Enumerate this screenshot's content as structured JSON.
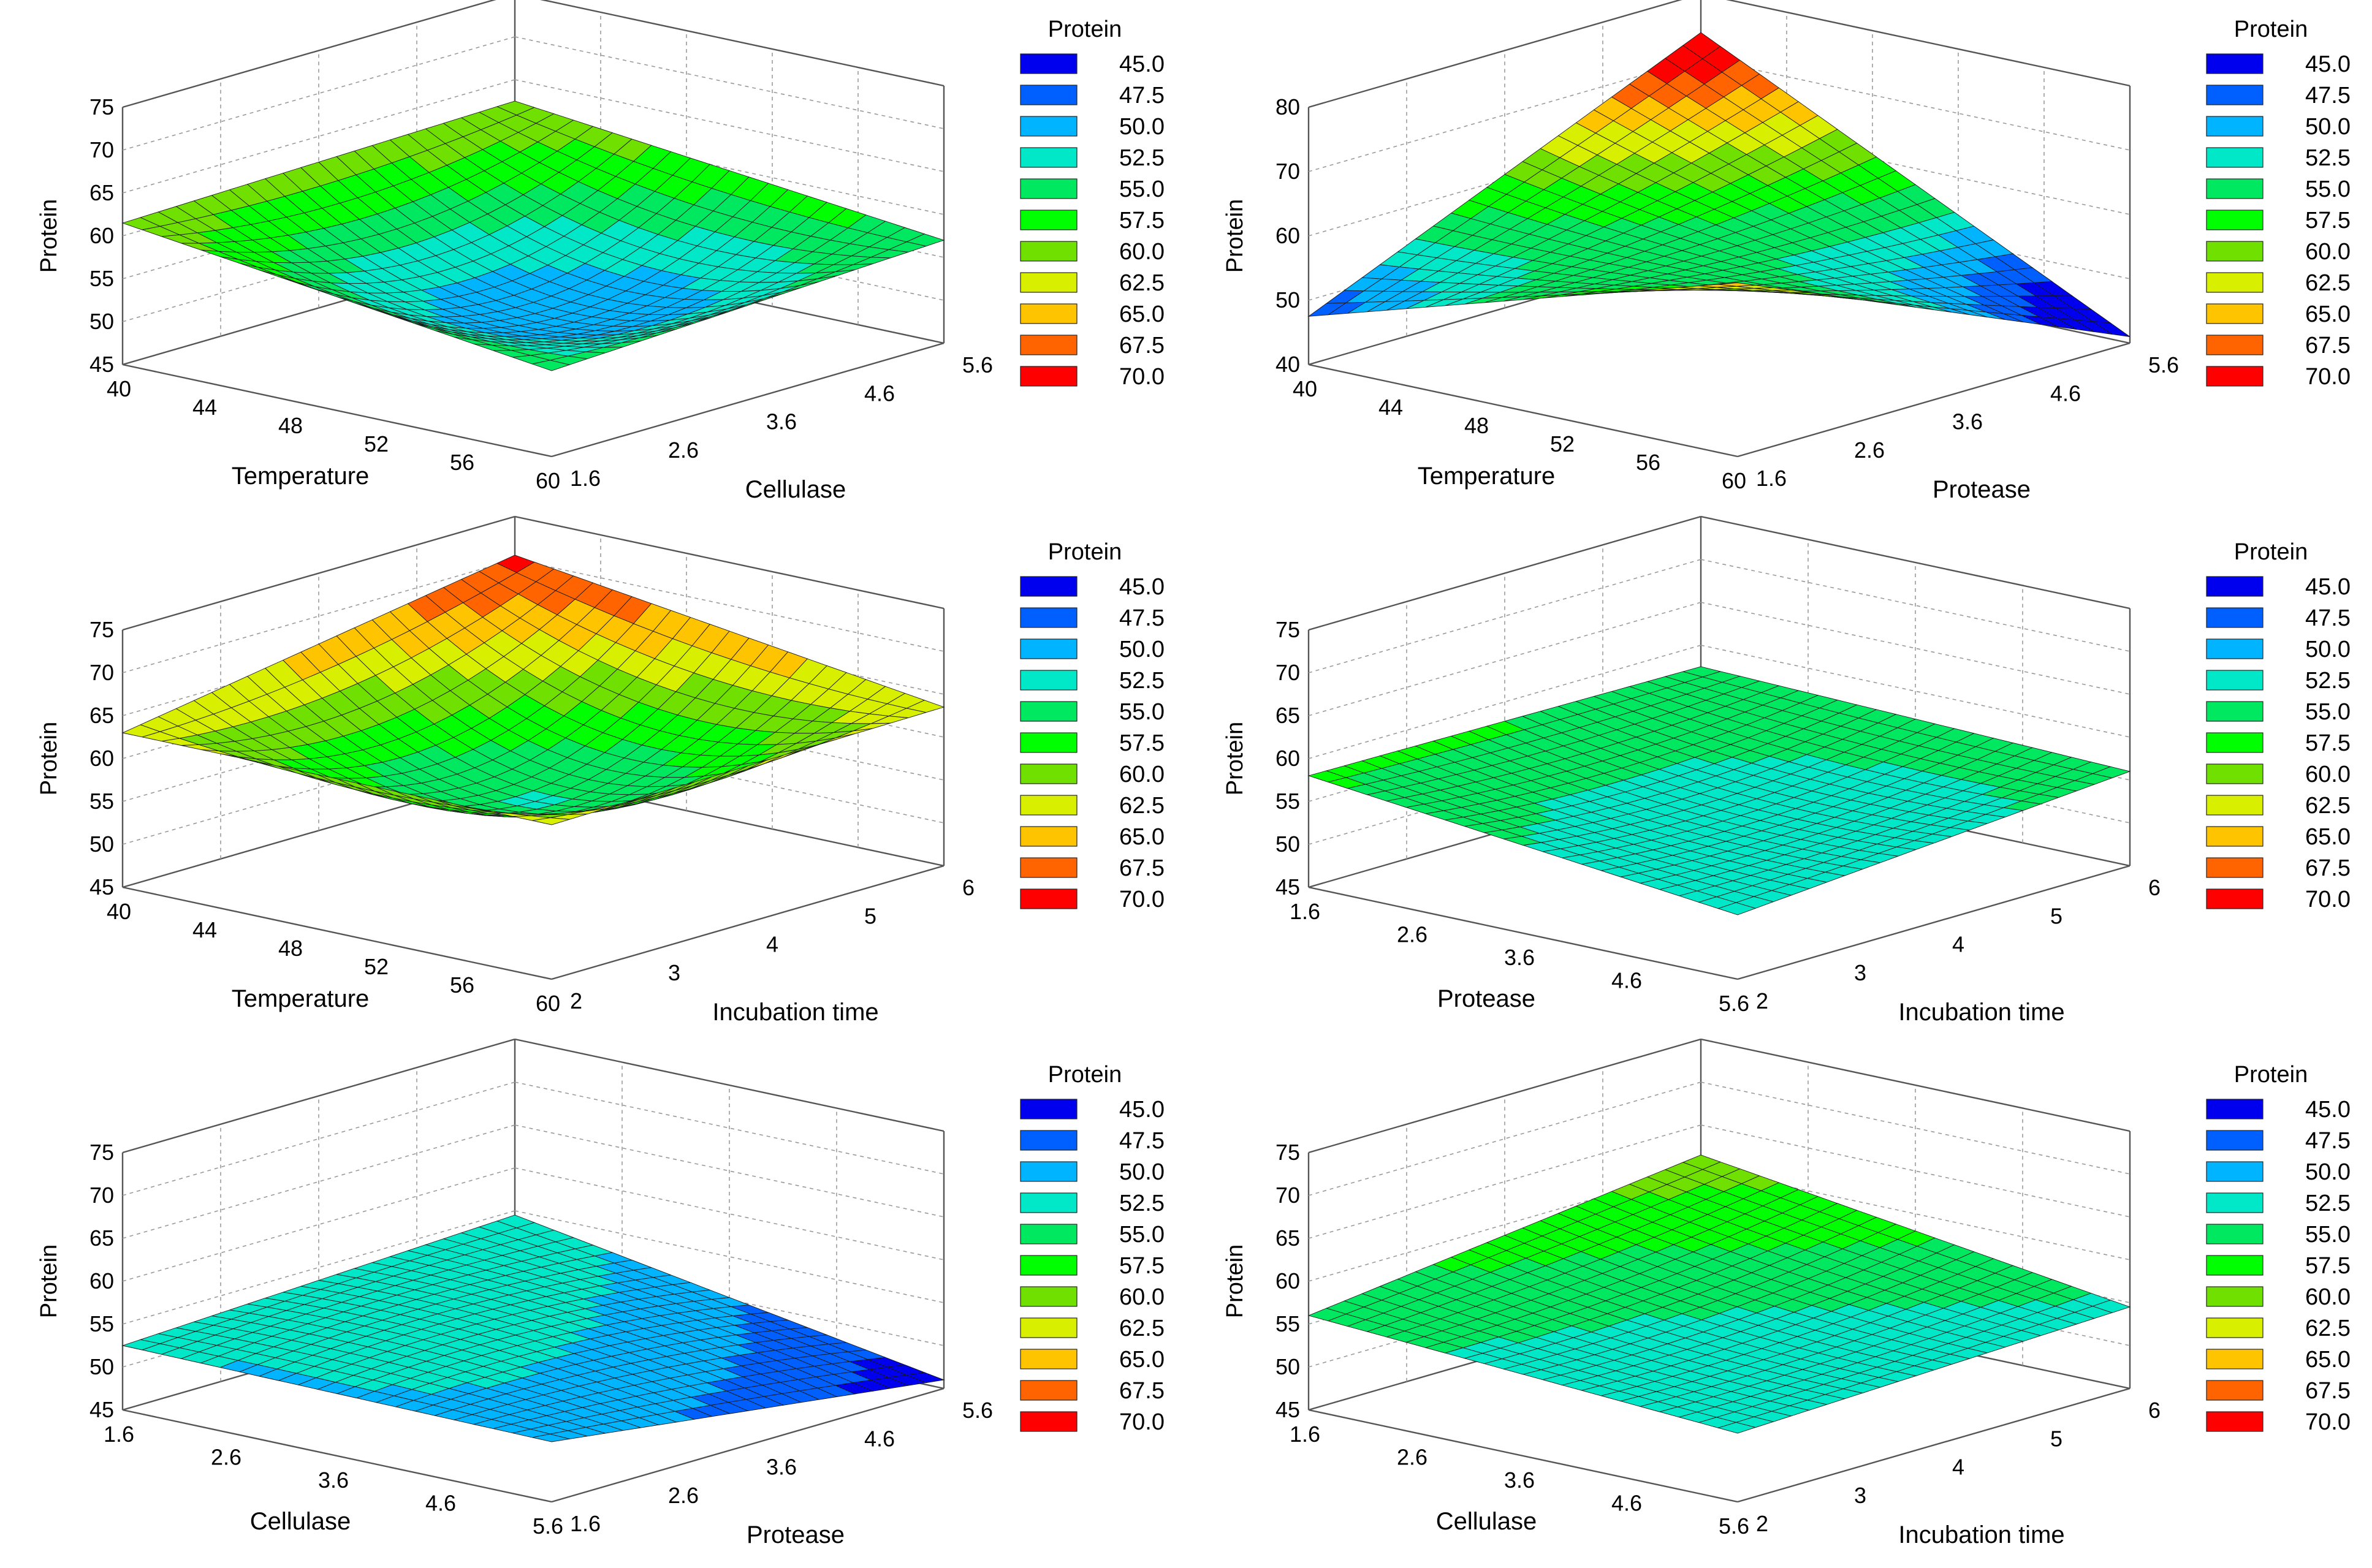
{
  "chart_data": [
    {
      "type": "surface",
      "zlabel": "Protein",
      "xlabel": "Temperature",
      "ylabel": "Cellulase",
      "x_ticks": [
        "40",
        "44",
        "48",
        "52",
        "56",
        "60"
      ],
      "y_ticks": [
        "1.6",
        "2.6",
        "3.6",
        "4.6",
        "5.6"
      ],
      "z_ticks": [
        "45",
        "50",
        "55",
        "60",
        "65",
        "70",
        "75"
      ],
      "xlim": [
        40,
        60
      ],
      "ylim": [
        1.6,
        5.6
      ],
      "zlim": [
        45,
        75
      ],
      "corners": {
        "xmin_ymin": 61.5,
        "xmax_ymin": 55.0,
        "xmin_ymax": 62.5,
        "xmax_ymax": 57.0
      },
      "center": 51.0,
      "legend": {
        "title": "Protein",
        "items": [
          {
            "label": "45.0",
            "color": "#0000ee"
          },
          {
            "label": "47.5",
            "color": "#0060ff"
          },
          {
            "label": "50.0",
            "color": "#00b4ff"
          },
          {
            "label": "52.5",
            "color": "#00e8c8"
          },
          {
            "label": "55.0",
            "color": "#00e860"
          },
          {
            "label": "57.5",
            "color": "#00ff00"
          },
          {
            "label": "60.0",
            "color": "#70e000"
          },
          {
            "label": "62.5",
            "color": "#d8f000"
          },
          {
            "label": "65.0",
            "color": "#ffc400"
          },
          {
            "label": "67.5",
            "color": "#ff6400"
          },
          {
            "label": "70.0",
            "color": "#ff0000"
          }
        ]
      }
    },
    {
      "type": "surface",
      "zlabel": "Protein",
      "xlabel": "Temperature",
      "ylabel": "Protease",
      "x_ticks": [
        "40",
        "44",
        "48",
        "52",
        "56",
        "60"
      ],
      "y_ticks": [
        "1.6",
        "2.6",
        "3.6",
        "4.6",
        "5.6"
      ],
      "z_ticks": [
        "40",
        "50",
        "60",
        "70",
        "80"
      ],
      "xlim": [
        40,
        60
      ],
      "ylim": [
        1.6,
        5.6
      ],
      "zlim": [
        40,
        80
      ],
      "corners": {
        "xmin_ymin": 47.5,
        "xmax_ymin": 67.0,
        "xmin_ymax": 74.0,
        "xmax_ymax": 41.0
      },
      "center": 56.0,
      "legend": {
        "title": "Protein",
        "items": [
          {
            "label": "45.0",
            "color": "#0000ee"
          },
          {
            "label": "47.5",
            "color": "#0060ff"
          },
          {
            "label": "50.0",
            "color": "#00b4ff"
          },
          {
            "label": "52.5",
            "color": "#00e8c8"
          },
          {
            "label": "55.0",
            "color": "#00e860"
          },
          {
            "label": "57.5",
            "color": "#00ff00"
          },
          {
            "label": "60.0",
            "color": "#70e000"
          },
          {
            "label": "62.5",
            "color": "#d8f000"
          },
          {
            "label": "65.0",
            "color": "#ffc400"
          },
          {
            "label": "67.5",
            "color": "#ff6400"
          },
          {
            "label": "70.0",
            "color": "#ff0000"
          }
        ]
      }
    },
    {
      "type": "surface",
      "zlabel": "Protein",
      "xlabel": "Temperature",
      "ylabel": "Incubation time",
      "x_ticks": [
        "40",
        "44",
        "48",
        "52",
        "56",
        "60"
      ],
      "y_ticks": [
        "2",
        "3",
        "4",
        "5",
        "6"
      ],
      "z_ticks": [
        "45",
        "50",
        "55",
        "60",
        "65",
        "70",
        "75"
      ],
      "xlim": [
        40,
        60
      ],
      "ylim": [
        2,
        6
      ],
      "zlim": [
        45,
        75
      ],
      "corners": {
        "xmin_ymin": 63.0,
        "xmax_ymin": 63.0,
        "xmin_ymax": 70.5,
        "xmax_ymax": 63.5
      },
      "center": 55.0,
      "legend": {
        "title": "Protein",
        "items": [
          {
            "label": "45.0",
            "color": "#0000ee"
          },
          {
            "label": "47.5",
            "color": "#0060ff"
          },
          {
            "label": "50.0",
            "color": "#00b4ff"
          },
          {
            "label": "52.5",
            "color": "#00e8c8"
          },
          {
            "label": "55.0",
            "color": "#00e860"
          },
          {
            "label": "57.5",
            "color": "#00ff00"
          },
          {
            "label": "60.0",
            "color": "#70e000"
          },
          {
            "label": "62.5",
            "color": "#d8f000"
          },
          {
            "label": "65.0",
            "color": "#ffc400"
          },
          {
            "label": "67.5",
            "color": "#ff6400"
          },
          {
            "label": "70.0",
            "color": "#ff0000"
          }
        ]
      }
    },
    {
      "type": "surface",
      "zlabel": "Protein",
      "xlabel": "Protease",
      "ylabel": "Incubation time",
      "x_ticks": [
        "1.6",
        "2.6",
        "3.6",
        "4.6",
        "5.6"
      ],
      "y_ticks": [
        "2",
        "3",
        "4",
        "5",
        "6"
      ],
      "z_ticks": [
        "45",
        "50",
        "55",
        "60",
        "65",
        "70",
        "75"
      ],
      "xlim": [
        1.6,
        5.6
      ],
      "ylim": [
        2,
        6
      ],
      "zlim": [
        45,
        75
      ],
      "corners": {
        "xmin_ymin": 58.0,
        "xmax_ymin": 52.5,
        "xmin_ymax": 57.5,
        "xmax_ymax": 56.0
      },
      "center": 54.0,
      "legend": {
        "title": "Protein",
        "items": [
          {
            "label": "45.0",
            "color": "#0000ee"
          },
          {
            "label": "47.5",
            "color": "#0060ff"
          },
          {
            "label": "50.0",
            "color": "#00b4ff"
          },
          {
            "label": "52.5",
            "color": "#00e8c8"
          },
          {
            "label": "55.0",
            "color": "#00e860"
          },
          {
            "label": "57.5",
            "color": "#00ff00"
          },
          {
            "label": "60.0",
            "color": "#70e000"
          },
          {
            "label": "62.5",
            "color": "#d8f000"
          },
          {
            "label": "65.0",
            "color": "#ffc400"
          },
          {
            "label": "67.5",
            "color": "#ff6400"
          },
          {
            "label": "70.0",
            "color": "#ff0000"
          }
        ]
      }
    },
    {
      "type": "surface",
      "zlabel": "Protein",
      "xlabel": "Cellulase",
      "ylabel": "Protease",
      "x_ticks": [
        "1.6",
        "2.6",
        "3.6",
        "4.6",
        "5.6"
      ],
      "y_ticks": [
        "1.6",
        "2.6",
        "3.6",
        "4.6",
        "5.6"
      ],
      "z_ticks": [
        "45",
        "50",
        "55",
        "60",
        "65",
        "70",
        "75"
      ],
      "xlim": [
        1.6,
        5.6
      ],
      "ylim": [
        1.6,
        5.6
      ],
      "zlim": [
        45,
        75
      ],
      "corners": {
        "xmin_ymin": 52.5,
        "xmax_ymin": 52.0,
        "xmin_ymax": 54.5,
        "xmax_ymax": 46.0
      },
      "center": 53.0,
      "legend": {
        "title": "Protein",
        "items": [
          {
            "label": "45.0",
            "color": "#0000ee"
          },
          {
            "label": "47.5",
            "color": "#0060ff"
          },
          {
            "label": "50.0",
            "color": "#00b4ff"
          },
          {
            "label": "52.5",
            "color": "#00e8c8"
          },
          {
            "label": "55.0",
            "color": "#00e860"
          },
          {
            "label": "57.5",
            "color": "#00ff00"
          },
          {
            "label": "60.0",
            "color": "#70e000"
          },
          {
            "label": "62.5",
            "color": "#d8f000"
          },
          {
            "label": "65.0",
            "color": "#ffc400"
          },
          {
            "label": "67.5",
            "color": "#ff6400"
          },
          {
            "label": "70.0",
            "color": "#ff0000"
          }
        ]
      }
    },
    {
      "type": "surface",
      "zlabel": "Protein",
      "xlabel": "Cellulase",
      "ylabel": "Incubation time",
      "x_ticks": [
        "1.6",
        "2.6",
        "3.6",
        "4.6",
        "5.6"
      ],
      "y_ticks": [
        "2",
        "3",
        "4",
        "5",
        "6"
      ],
      "z_ticks": [
        "45",
        "50",
        "55",
        "60",
        "65",
        "70",
        "75"
      ],
      "xlim": [
        1.6,
        5.6
      ],
      "ylim": [
        2,
        6
      ],
      "zlim": [
        45,
        75
      ],
      "corners": {
        "xmin_ymin": 56.0,
        "xmax_ymin": 53.0,
        "xmin_ymax": 61.5,
        "xmax_ymax": 54.5
      },
      "center": 55.0,
      "legend": {
        "title": "Protein",
        "items": [
          {
            "label": "45.0",
            "color": "#0000ee"
          },
          {
            "label": "47.5",
            "color": "#0060ff"
          },
          {
            "label": "50.0",
            "color": "#00b4ff"
          },
          {
            "label": "52.5",
            "color": "#00e8c8"
          },
          {
            "label": "55.0",
            "color": "#00e860"
          },
          {
            "label": "57.5",
            "color": "#00ff00"
          },
          {
            "label": "60.0",
            "color": "#70e000"
          },
          {
            "label": "62.5",
            "color": "#d8f000"
          },
          {
            "label": "65.0",
            "color": "#ffc400"
          },
          {
            "label": "67.5",
            "color": "#ff6400"
          },
          {
            "label": "70.0",
            "color": "#ff0000"
          }
        ]
      }
    }
  ]
}
